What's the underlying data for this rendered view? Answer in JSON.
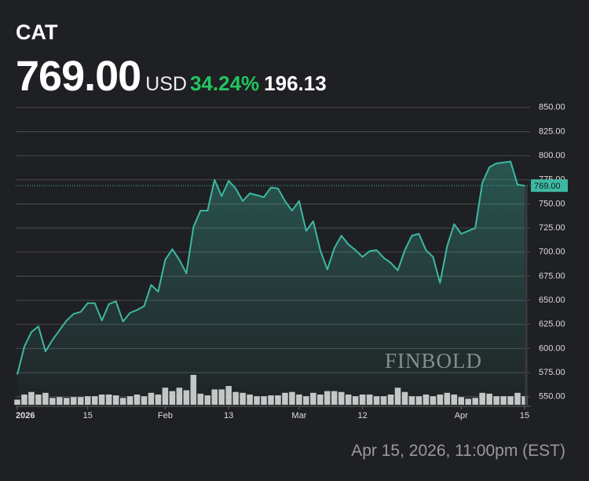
{
  "header": {
    "symbol": "CAT",
    "price": "769.00",
    "currency": "USD",
    "change_pct": "34.24%",
    "change_abs": "196.13"
  },
  "footer": {
    "timestamp": "Apr 15, 2026, 11:00pm (EST)"
  },
  "chart_data": {
    "type": "line",
    "color": "#3db8a2",
    "watermark": "FINBOLD",
    "values": [
      573,
      602,
      617,
      623,
      597,
      609,
      619,
      629,
      636,
      638,
      647,
      647,
      629,
      646,
      649,
      628,
      637,
      640,
      644,
      666,
      659,
      692,
      703,
      692,
      678,
      726,
      743,
      743,
      775,
      758,
      774,
      766,
      753,
      761,
      759,
      757,
      767,
      766,
      753,
      743,
      753,
      722,
      732,
      702,
      682,
      704,
      717,
      708,
      702,
      695,
      701,
      702,
      694,
      689,
      681,
      702,
      717,
      719,
      702,
      695,
      668,
      706,
      729,
      719,
      722,
      725,
      772,
      788,
      792,
      793,
      794,
      770,
      769
    ],
    "volume": [
      6,
      12,
      15,
      12,
      14,
      8,
      9,
      8,
      9,
      9,
      10,
      10,
      12,
      12,
      11,
      8,
      10,
      12,
      10,
      14,
      12,
      20,
      16,
      20,
      17,
      35,
      13,
      11,
      18,
      18,
      22,
      15,
      14,
      12,
      10,
      10,
      11,
      11,
      14,
      15,
      12,
      10,
      14,
      12,
      16,
      16,
      15,
      12,
      10,
      12,
      12,
      10,
      10,
      12,
      20,
      15,
      10,
      10,
      12,
      10,
      12,
      14,
      12,
      9,
      7,
      8,
      14,
      13,
      10,
      10,
      10,
      14,
      10
    ],
    "volume_color": "#c8c8c8",
    "price_line": {
      "value": 769,
      "label": "769.00"
    },
    "ylim": [
      540,
      858
    ],
    "yticks": [
      {
        "value": 550,
        "label": "550.00"
      },
      {
        "value": 575,
        "label": "575.00"
      },
      {
        "value": 600,
        "label": "600.00"
      },
      {
        "value": 625,
        "label": "625.00"
      },
      {
        "value": 650,
        "label": "650.00"
      },
      {
        "value": 675,
        "label": "675.00"
      },
      {
        "value": 700,
        "label": "700.00"
      },
      {
        "value": 725,
        "label": "725.00"
      },
      {
        "value": 750,
        "label": "750.00"
      },
      {
        "value": 775,
        "label": "775.00"
      },
      {
        "value": 800,
        "label": "800.00"
      },
      {
        "value": 825,
        "label": "825.00"
      },
      {
        "value": 850,
        "label": "850.00"
      }
    ],
    "xticks": [
      {
        "value": 0,
        "label": "2026"
      },
      {
        "value": 10,
        "label": "15"
      },
      {
        "value": 21,
        "label": "Feb"
      },
      {
        "value": 30,
        "label": "13"
      },
      {
        "value": 40,
        "label": "Mar"
      },
      {
        "value": 49,
        "label": "12"
      },
      {
        "value": 63,
        "label": "Apr"
      },
      {
        "value": 72,
        "label": "15"
      }
    ],
    "grid": true
  }
}
